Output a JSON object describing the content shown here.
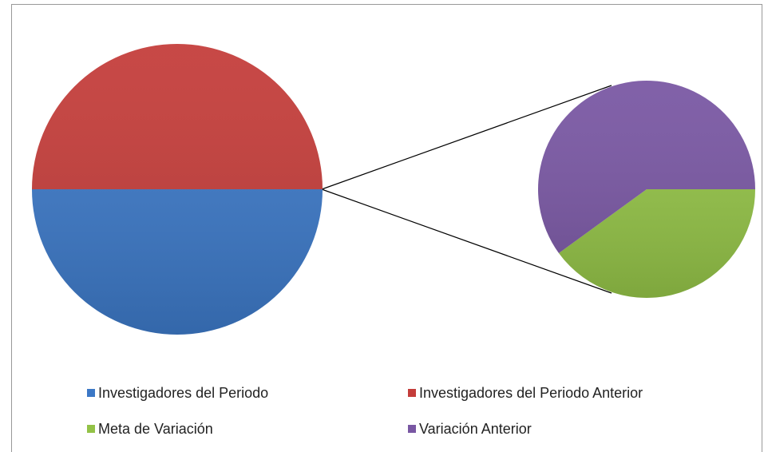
{
  "chart_data": {
    "type": "pie",
    "pies": [
      {
        "categories": [
          "Investigadores del Periodo",
          "Investigadores del Periodo Anterior"
        ],
        "values": [
          50,
          50
        ],
        "colors": [
          "#3c78c6",
          "#c43d3a"
        ]
      },
      {
        "categories": [
          "Meta de Variación",
          "Variación Anterior"
        ],
        "values": [
          40,
          60
        ],
        "colors": [
          "#93c247",
          "#7957a3"
        ]
      }
    ]
  }
}
